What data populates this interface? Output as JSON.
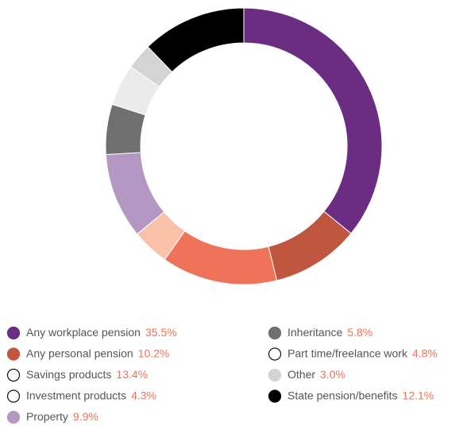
{
  "chart_data": {
    "type": "donut",
    "categories": [
      "Any workplace pension",
      "Any personal pension",
      "Savings products",
      "Investment products",
      "Property",
      "Inheritance",
      "Part time/freelance work",
      "Other",
      "State pension/benefits"
    ],
    "values": [
      35.5,
      10.2,
      13.4,
      4.3,
      9.9,
      5.8,
      4.8,
      3.0,
      12.1
    ],
    "value_labels": [
      "35.5%",
      "10.2%",
      "13.4%",
      "4.3%",
      "9.9%",
      "5.8%",
      "4.8%",
      "3.0%",
      "12.1%"
    ],
    "colors": [
      "#6b2d82",
      "#c0563f",
      "#ef7358",
      "#f9c1a8",
      "#b398c4",
      "#6f6f6f",
      "#ebebeb",
      "#d4d4d4",
      "#000000"
    ]
  }
}
